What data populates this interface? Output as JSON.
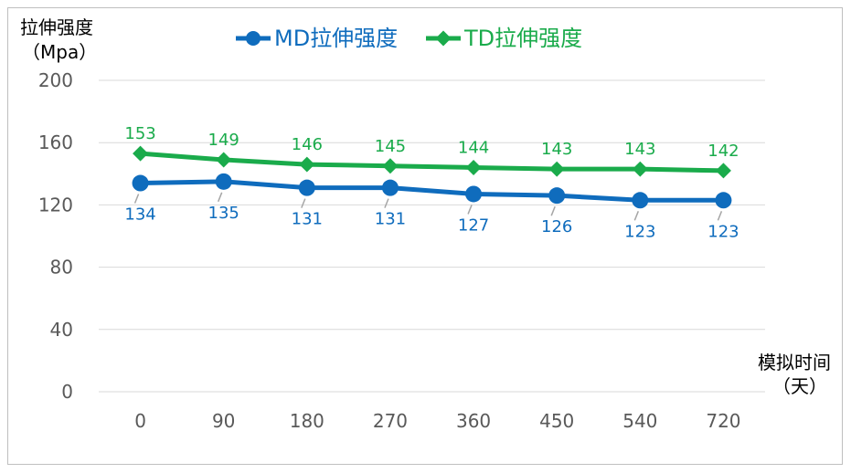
{
  "chart_data": {
    "type": "line",
    "ylabel_line1": "拉伸强度",
    "ylabel_line2": "（Mpa）",
    "xlabel_line1": "模拟时间",
    "xlabel_line2": "（天）",
    "categories": [
      "0",
      "90",
      "180",
      "270",
      "360",
      "450",
      "540",
      "720"
    ],
    "yticks": [
      "0",
      "40",
      "80",
      "120",
      "160",
      "200"
    ],
    "ylim": [
      0,
      200
    ],
    "grid": true,
    "legend_position": "top",
    "series": [
      {
        "name": "MD拉伸强度",
        "color": "#0f6cbd",
        "marker": "circle",
        "values": [
          134,
          135,
          131,
          131,
          127,
          126,
          123,
          123
        ]
      },
      {
        "name": "TD拉伸强度",
        "color": "#1aab4b",
        "marker": "diamond",
        "values": [
          153,
          149,
          146,
          145,
          144,
          143,
          143,
          142
        ]
      }
    ]
  }
}
